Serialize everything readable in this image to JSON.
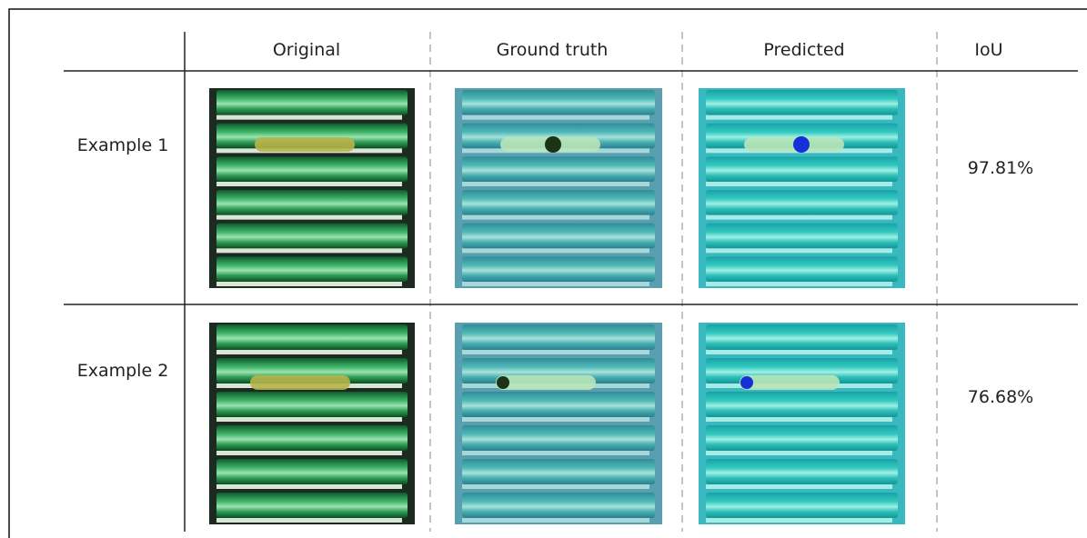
{
  "table": {
    "header": [
      "Original",
      "Ground truth",
      "Predicted",
      "IoU"
    ],
    "rows": [
      {
        "label": "Example 1",
        "iou": "97.81%"
      },
      {
        "label": "Example 2",
        "iou": "76.68%"
      }
    ]
  }
}
